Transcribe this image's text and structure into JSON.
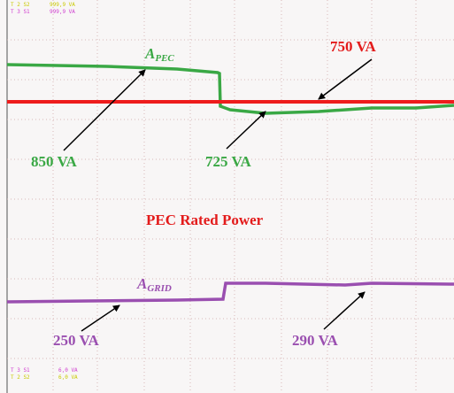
{
  "readouts_top": [
    {
      "channel": "T 2 S2",
      "value": "999,9 VA"
    },
    {
      "channel": "T 3 S1",
      "value": "999,9 VA"
    }
  ],
  "readouts_bottom": [
    {
      "channel": "T 3 S1",
      "value": "6,0 VA"
    },
    {
      "channel": "T 2 S2",
      "value": "6,0 VA"
    }
  ],
  "labels": {
    "rated_value": "750 VA",
    "pec_symbol": "A",
    "pec_sub": "PEC",
    "pec_before": "850 VA",
    "pec_after": "725 VA",
    "rated_name": "PEC Rated Power",
    "grid_symbol": "A",
    "grid_sub": "GRID",
    "grid_before": "250 VA",
    "grid_after": "290 VA"
  }
}
